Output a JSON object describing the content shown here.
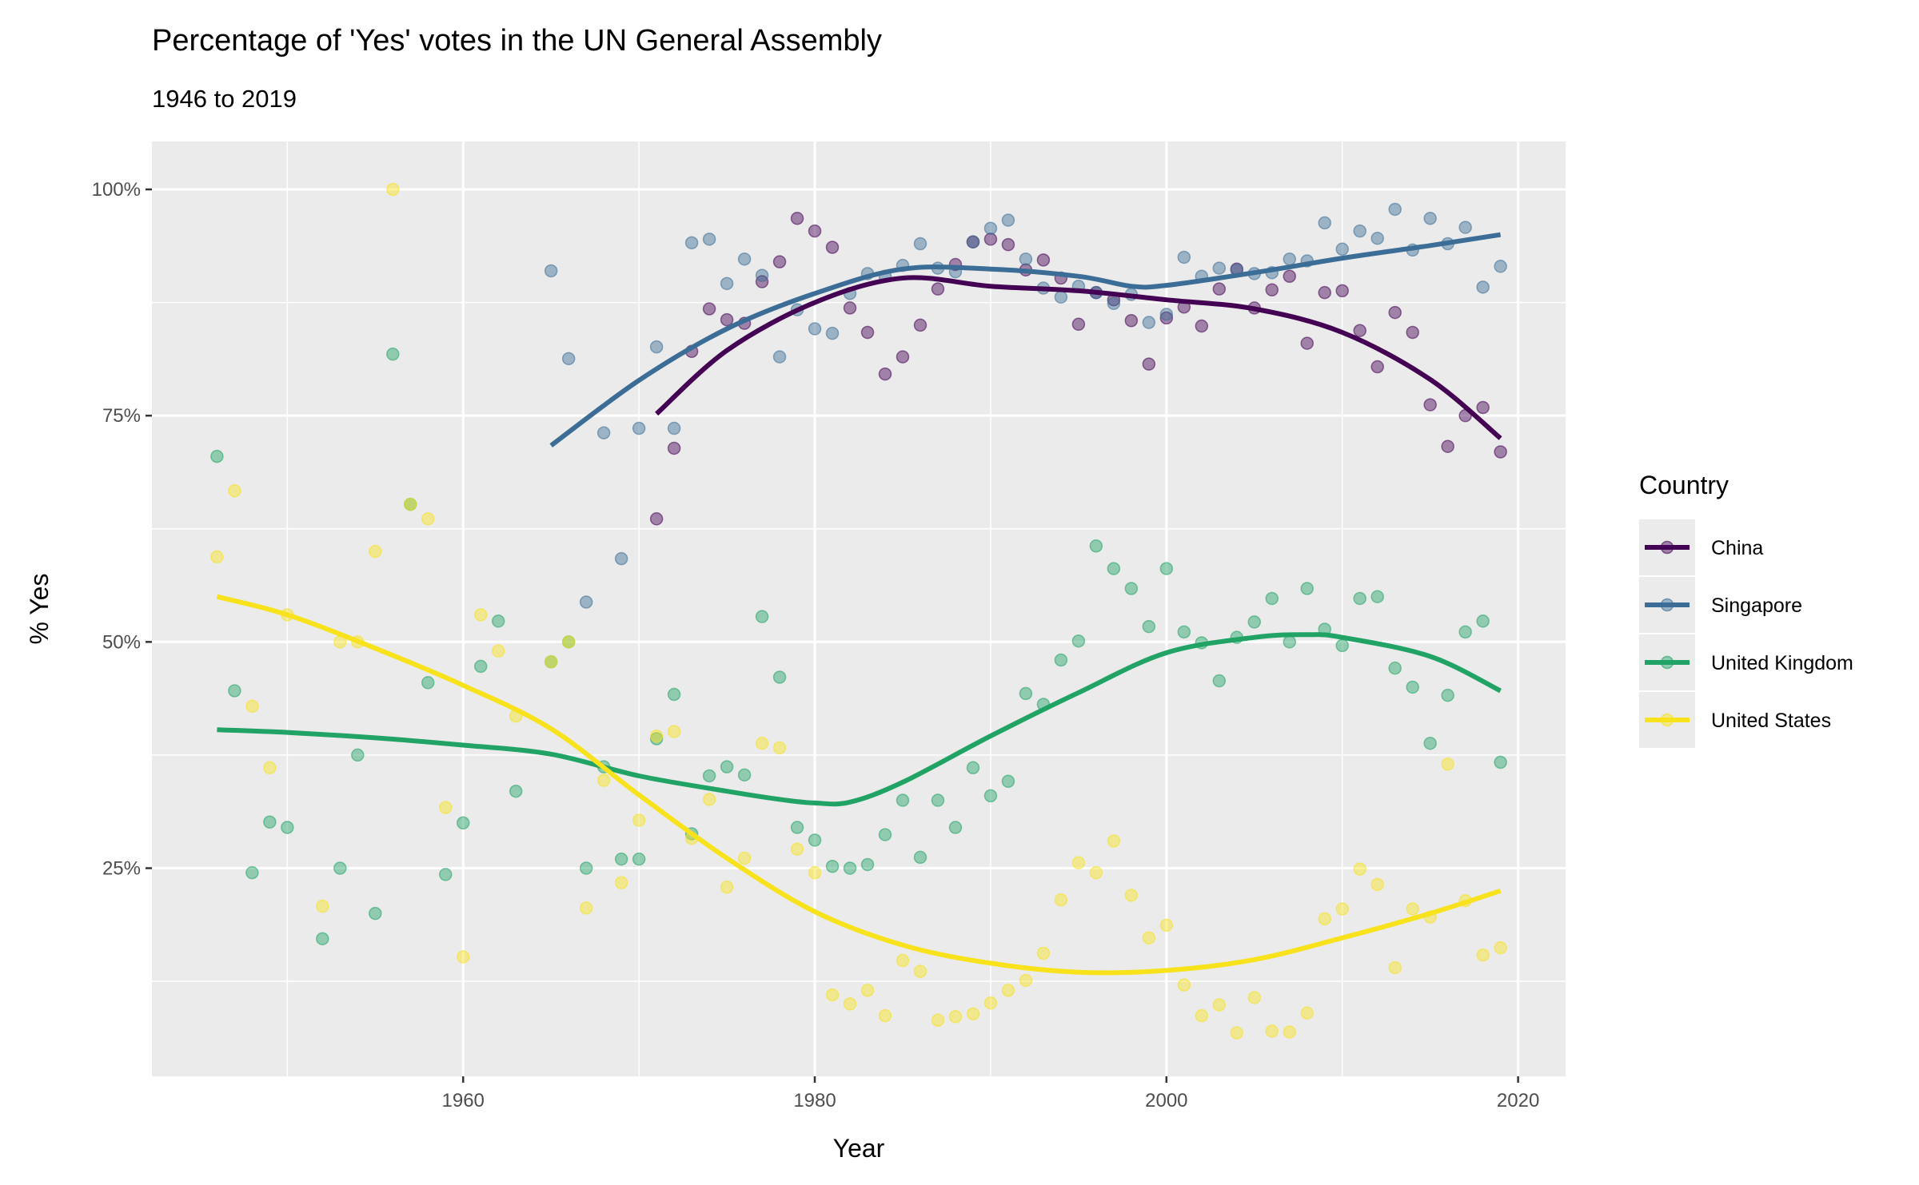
{
  "chart_data": {
    "type": "scatter",
    "title": "Percentage of 'Yes' votes in the UN General Assembly",
    "subtitle": "1946 to 2019",
    "xlabel": "Year",
    "ylabel": "% Yes",
    "xlim": [
      1942.3,
      2022.7
    ],
    "ylim": [
      0.02,
      1.053
    ],
    "x_ticks": [
      1960,
      1980,
      2000,
      2020
    ],
    "y_ticks": [
      0.25,
      0.5,
      0.75,
      1.0
    ],
    "y_tick_labels": [
      "25%",
      "50%",
      "75%",
      "100%"
    ],
    "grid": true,
    "legend": {
      "title": "Country",
      "position": "right"
    },
    "series": [
      {
        "name": "China",
        "color": "#440154",
        "points": [
          [
            1971,
            0.636
          ],
          [
            1972,
            0.714
          ],
          [
            1973,
            0.821
          ],
          [
            1974,
            0.868
          ],
          [
            1975,
            0.856
          ],
          [
            1976,
            0.852
          ],
          [
            1977,
            0.898
          ],
          [
            1978,
            0.92
          ],
          [
            1979,
            0.968
          ],
          [
            1980,
            0.954
          ],
          [
            1981,
            0.936
          ],
          [
            1982,
            0.869
          ],
          [
            1983,
            0.842
          ],
          [
            1984,
            0.796
          ],
          [
            1985,
            0.815
          ],
          [
            1986,
            0.85
          ],
          [
            1987,
            0.89
          ],
          [
            1988,
            0.917
          ],
          [
            1989,
            0.942
          ],
          [
            1990,
            0.945
          ],
          [
            1991,
            0.939
          ],
          [
            1992,
            0.911
          ],
          [
            1993,
            0.922
          ],
          [
            1994,
            0.902
          ],
          [
            1995,
            0.851
          ],
          [
            1996,
            0.886
          ],
          [
            1997,
            0.878
          ],
          [
            1998,
            0.855
          ],
          [
            1999,
            0.807
          ],
          [
            2000,
            0.858
          ],
          [
            2001,
            0.87
          ],
          [
            2002,
            0.849
          ],
          [
            2003,
            0.89
          ],
          [
            2004,
            0.912
          ],
          [
            2005,
            0.869
          ],
          [
            2006,
            0.889
          ],
          [
            2007,
            0.904
          ],
          [
            2008,
            0.83
          ],
          [
            2009,
            0.886
          ],
          [
            2010,
            0.888
          ],
          [
            2011,
            0.844
          ],
          [
            2012,
            0.804
          ],
          [
            2013,
            0.864
          ],
          [
            2014,
            0.842
          ],
          [
            2015,
            0.762
          ],
          [
            2016,
            0.716
          ],
          [
            2017,
            0.75
          ],
          [
            2018,
            0.759
          ],
          [
            2019,
            0.71
          ]
        ],
        "smooth": [
          [
            1971,
            0.752
          ],
          [
            1975,
            0.822
          ],
          [
            1980,
            0.875
          ],
          [
            1985,
            0.902
          ],
          [
            1990,
            0.893
          ],
          [
            1995,
            0.888
          ],
          [
            2000,
            0.878
          ],
          [
            2005,
            0.868
          ],
          [
            2010,
            0.842
          ],
          [
            2015,
            0.79
          ],
          [
            2019,
            0.725
          ]
        ]
      },
      {
        "name": "Singapore",
        "color": "#3b6d96",
        "points": [
          [
            1965,
            0.91
          ],
          [
            1966,
            0.813
          ],
          [
            1967,
            0.544
          ],
          [
            1968,
            0.731
          ],
          [
            1969,
            0.592
          ],
          [
            1970,
            0.736
          ],
          [
            1971,
            0.826
          ],
          [
            1972,
            0.736
          ],
          [
            1973,
            0.941
          ],
          [
            1974,
            0.945
          ],
          [
            1975,
            0.896
          ],
          [
            1976,
            0.923
          ],
          [
            1977,
            0.905
          ],
          [
            1978,
            0.815
          ],
          [
            1979,
            0.867
          ],
          [
            1980,
            0.846
          ],
          [
            1981,
            0.841
          ],
          [
            1982,
            0.885
          ],
          [
            1983,
            0.907
          ],
          [
            1984,
            0.904
          ],
          [
            1985,
            0.916
          ],
          [
            1986,
            0.94
          ],
          [
            1987,
            0.913
          ],
          [
            1988,
            0.909
          ],
          [
            1989,
            0.942
          ],
          [
            1990,
            0.957
          ],
          [
            1991,
            0.966
          ],
          [
            1992,
            0.923
          ],
          [
            1993,
            0.891
          ],
          [
            1994,
            0.881
          ],
          [
            1995,
            0.893
          ],
          [
            1996,
            0.886
          ],
          [
            1997,
            0.874
          ],
          [
            1998,
            0.884
          ],
          [
            1999,
            0.853
          ],
          [
            2000,
            0.862
          ],
          [
            2001,
            0.925
          ],
          [
            2002,
            0.904
          ],
          [
            2003,
            0.913
          ],
          [
            2004,
            0.911
          ],
          [
            2005,
            0.907
          ],
          [
            2006,
            0.908
          ],
          [
            2007,
            0.923
          ],
          [
            2008,
            0.921
          ],
          [
            2009,
            0.963
          ],
          [
            2010,
            0.934
          ],
          [
            2011,
            0.954
          ],
          [
            2012,
            0.946
          ],
          [
            2013,
            0.978
          ],
          [
            2014,
            0.933
          ],
          [
            2015,
            0.968
          ],
          [
            2016,
            0.94
          ],
          [
            2017,
            0.958
          ],
          [
            2018,
            0.892
          ],
          [
            2019,
            0.915
          ]
        ],
        "smooth": [
          [
            1965,
            0.717
          ],
          [
            1970,
            0.789
          ],
          [
            1975,
            0.846
          ],
          [
            1980,
            0.885
          ],
          [
            1985,
            0.912
          ],
          [
            1990,
            0.912
          ],
          [
            1995,
            0.904
          ],
          [
            1998,
            0.893
          ],
          [
            2000,
            0.894
          ],
          [
            2005,
            0.908
          ],
          [
            2010,
            0.924
          ],
          [
            2015,
            0.938
          ],
          [
            2019,
            0.95
          ]
        ]
      },
      {
        "name": "United Kingdom",
        "color": "#21a366",
        "points": [
          [
            1946,
            0.705
          ],
          [
            1947,
            0.446
          ],
          [
            1948,
            0.245
          ],
          [
            1949,
            0.301
          ],
          [
            1950,
            0.295
          ],
          [
            1952,
            0.172
          ],
          [
            1953,
            0.25
          ],
          [
            1954,
            0.375
          ],
          [
            1955,
            0.2
          ],
          [
            1956,
            0.818
          ],
          [
            1957,
            0.652
          ],
          [
            1958,
            0.455
          ],
          [
            1959,
            0.243
          ],
          [
            1960,
            0.3
          ],
          [
            1961,
            0.473
          ],
          [
            1962,
            0.523
          ],
          [
            1963,
            0.335
          ],
          [
            1965,
            0.478
          ],
          [
            1966,
            0.5
          ],
          [
            1967,
            0.25
          ],
          [
            1968,
            0.362
          ],
          [
            1969,
            0.26
          ],
          [
            1970,
            0.26
          ],
          [
            1971,
            0.393
          ],
          [
            1972,
            0.442
          ],
          [
            1973,
            0.288
          ],
          [
            1974,
            0.352
          ],
          [
            1975,
            0.362
          ],
          [
            1976,
            0.353
          ],
          [
            1977,
            0.528
          ],
          [
            1978,
            0.461
          ],
          [
            1979,
            0.295
          ],
          [
            1980,
            0.281
          ],
          [
            1981,
            0.252
          ],
          [
            1982,
            0.25
          ],
          [
            1983,
            0.254
          ],
          [
            1984,
            0.287
          ],
          [
            1985,
            0.325
          ],
          [
            1986,
            0.262
          ],
          [
            1987,
            0.325
          ],
          [
            1988,
            0.295
          ],
          [
            1989,
            0.361
          ],
          [
            1990,
            0.33
          ],
          [
            1991,
            0.346
          ],
          [
            1992,
            0.443
          ],
          [
            1993,
            0.431
          ],
          [
            1994,
            0.48
          ],
          [
            1995,
            0.501
          ],
          [
            1996,
            0.606
          ],
          [
            1997,
            0.581
          ],
          [
            1998,
            0.559
          ],
          [
            1999,
            0.517
          ],
          [
            2000,
            0.581
          ],
          [
            2001,
            0.511
          ],
          [
            2002,
            0.499
          ],
          [
            2003,
            0.457
          ],
          [
            2004,
            0.505
          ],
          [
            2005,
            0.522
          ],
          [
            2006,
            0.548
          ],
          [
            2007,
            0.5
          ],
          [
            2008,
            0.559
          ],
          [
            2009,
            0.514
          ],
          [
            2010,
            0.496
          ],
          [
            2011,
            0.548
          ],
          [
            2012,
            0.55
          ],
          [
            2013,
            0.471
          ],
          [
            2014,
            0.45
          ],
          [
            2015,
            0.388
          ],
          [
            2016,
            0.441
          ],
          [
            2017,
            0.511
          ],
          [
            2018,
            0.523
          ],
          [
            2019,
            0.367
          ]
        ],
        "smooth": [
          [
            1946,
            0.403
          ],
          [
            1950,
            0.4
          ],
          [
            1955,
            0.394
          ],
          [
            1960,
            0.386
          ],
          [
            1965,
            0.376
          ],
          [
            1970,
            0.352
          ],
          [
            1975,
            0.335
          ],
          [
            1978,
            0.326
          ],
          [
            1980,
            0.322
          ],
          [
            1982,
            0.323
          ],
          [
            1985,
            0.345
          ],
          [
            1990,
            0.396
          ],
          [
            1995,
            0.444
          ],
          [
            2000,
            0.488
          ],
          [
            2005,
            0.505
          ],
          [
            2008,
            0.508
          ],
          [
            2010,
            0.505
          ],
          [
            2015,
            0.484
          ],
          [
            2019,
            0.446
          ]
        ]
      },
      {
        "name": "United States",
        "color": "#f7e21c",
        "points": [
          [
            1946,
            0.594
          ],
          [
            1947,
            0.667
          ],
          [
            1948,
            0.429
          ],
          [
            1949,
            0.361
          ],
          [
            1950,
            0.53
          ],
          [
            1952,
            0.208
          ],
          [
            1953,
            0.5
          ],
          [
            1954,
            0.5
          ],
          [
            1955,
            0.6
          ],
          [
            1956,
            1.0
          ],
          [
            1957,
            0.652
          ],
          [
            1958,
            0.636
          ],
          [
            1959,
            0.317
          ],
          [
            1960,
            0.152
          ],
          [
            1961,
            0.53
          ],
          [
            1962,
            0.49
          ],
          [
            1963,
            0.418
          ],
          [
            1965,
            0.478
          ],
          [
            1966,
            0.5
          ],
          [
            1967,
            0.206
          ],
          [
            1968,
            0.347
          ],
          [
            1969,
            0.234
          ],
          [
            1970,
            0.303
          ],
          [
            1971,
            0.396
          ],
          [
            1972,
            0.401
          ],
          [
            1973,
            0.283
          ],
          [
            1974,
            0.326
          ],
          [
            1975,
            0.229
          ],
          [
            1976,
            0.261
          ],
          [
            1977,
            0.388
          ],
          [
            1978,
            0.383
          ],
          [
            1979,
            0.271
          ],
          [
            1980,
            0.245
          ],
          [
            1981,
            0.11
          ],
          [
            1982,
            0.1
          ],
          [
            1983,
            0.115
          ],
          [
            1984,
            0.087
          ],
          [
            1985,
            0.148
          ],
          [
            1986,
            0.136
          ],
          [
            1987,
            0.082
          ],
          [
            1988,
            0.086
          ],
          [
            1989,
            0.089
          ],
          [
            1990,
            0.101
          ],
          [
            1991,
            0.115
          ],
          [
            1992,
            0.126
          ],
          [
            1993,
            0.156
          ],
          [
            1994,
            0.215
          ],
          [
            1995,
            0.256
          ],
          [
            1996,
            0.245
          ],
          [
            1997,
            0.28
          ],
          [
            1998,
            0.22
          ],
          [
            1999,
            0.173
          ],
          [
            2000,
            0.187
          ],
          [
            2001,
            0.121
          ],
          [
            2002,
            0.087
          ],
          [
            2003,
            0.099
          ],
          [
            2004,
            0.068
          ],
          [
            2005,
            0.107
          ],
          [
            2006,
            0.07
          ],
          [
            2007,
            0.069
          ],
          [
            2008,
            0.09
          ],
          [
            2009,
            0.194
          ],
          [
            2010,
            0.205
          ],
          [
            2011,
            0.249
          ],
          [
            2012,
            0.232
          ],
          [
            2013,
            0.14
          ],
          [
            2014,
            0.205
          ],
          [
            2015,
            0.196
          ],
          [
            2016,
            0.365
          ],
          [
            2017,
            0.214
          ],
          [
            2018,
            0.154
          ],
          [
            2019,
            0.162
          ]
        ],
        "smooth": [
          [
            1946,
            0.55
          ],
          [
            1950,
            0.53
          ],
          [
            1955,
            0.493
          ],
          [
            1960,
            0.452
          ],
          [
            1965,
            0.404
          ],
          [
            1970,
            0.331
          ],
          [
            1975,
            0.261
          ],
          [
            1980,
            0.202
          ],
          [
            1985,
            0.165
          ],
          [
            1990,
            0.145
          ],
          [
            1995,
            0.135
          ],
          [
            2000,
            0.137
          ],
          [
            2005,
            0.149
          ],
          [
            2010,
            0.173
          ],
          [
            2015,
            0.2
          ],
          [
            2019,
            0.225
          ]
        ]
      }
    ]
  }
}
